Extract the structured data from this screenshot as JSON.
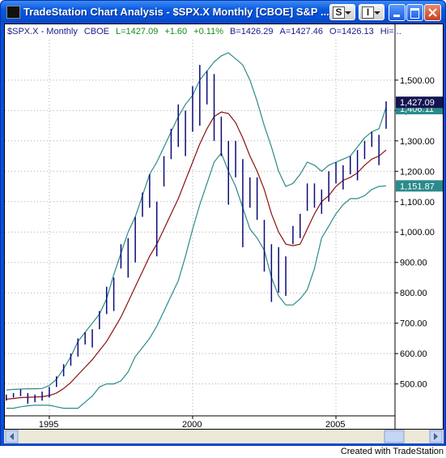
{
  "window": {
    "title": "TradeStation Chart Analysis - $SPX.X  Monthly  [CBOE] S&P ...",
    "menu_buttons": [
      "S",
      "I"
    ],
    "footer": "Created with TradeStation"
  },
  "chart_data": {
    "type": "ohlc",
    "header": [
      {
        "text": "$SPX.X - Monthly",
        "color": "#1a1a8c"
      },
      {
        "text": "CBOE",
        "color": "#1a1a8c"
      },
      {
        "text": "L=1427.09",
        "color": "#1a8c1a"
      },
      {
        "text": "+1.60",
        "color": "#1a8c1a"
      },
      {
        "text": "+0.11%",
        "color": "#1a8c1a"
      },
      {
        "text": "B=1426.29",
        "color": "#1a1a8c"
      },
      {
        "text": "A=1427.46",
        "color": "#1a1a8c"
      },
      {
        "text": "O=1426.13",
        "color": "#1a1a8c"
      },
      {
        "text": "Hi=...",
        "color": "#1a1a8c"
      }
    ],
    "x": [
      1993.5,
      1993.75,
      1994,
      1994.25,
      1994.5,
      1994.75,
      1995,
      1995.25,
      1995.5,
      1995.75,
      1996,
      1996.25,
      1996.5,
      1996.75,
      1997,
      1997.25,
      1997.5,
      1997.75,
      1998,
      1998.25,
      1998.5,
      1998.75,
      1999,
      1999.25,
      1999.5,
      1999.75,
      2000,
      2000.25,
      2000.5,
      2000.75,
      2001,
      2001.25,
      2001.5,
      2001.75,
      2002,
      2002.25,
      2002.5,
      2002.75,
      2003,
      2003.25,
      2003.5,
      2003.75,
      2004,
      2004.25,
      2004.5,
      2004.75,
      2005,
      2005.25,
      2005.5,
      2005.75,
      2006,
      2006.25,
      2006.5,
      2006.75
    ],
    "high": [
      465,
      470,
      482,
      470,
      465,
      475,
      490,
      525,
      565,
      600,
      650,
      670,
      680,
      740,
      820,
      850,
      960,
      980,
      1050,
      1130,
      1190,
      1100,
      1250,
      1340,
      1420,
      1400,
      1480,
      1550,
      1530,
      1520,
      1380,
      1300,
      1300,
      1240,
      1180,
      1180,
      1040,
      960,
      950,
      920,
      1020,
      1060,
      1160,
      1160,
      1140,
      1200,
      1230,
      1220,
      1250,
      1270,
      1300,
      1330,
      1320,
      1430
    ],
    "low": [
      445,
      455,
      460,
      435,
      440,
      445,
      455,
      490,
      525,
      560,
      590,
      630,
      620,
      680,
      730,
      740,
      880,
      850,
      900,
      1050,
      1080,
      920,
      1150,
      1240,
      1280,
      1250,
      1330,
      1350,
      1420,
      1300,
      1250,
      1090,
      1180,
      950,
      1080,
      1040,
      870,
      770,
      800,
      790,
      960,
      980,
      1070,
      1080,
      1060,
      1100,
      1160,
      1140,
      1190,
      1170,
      1240,
      1280,
      1220,
      1340
    ],
    "bar_color": "#0a0a78",
    "lines": [
      {
        "color": "#2b8a8a",
        "values": [
          480,
          482,
          483,
          484,
          484,
          485,
          495,
          515,
          550,
          590,
          640,
          670,
          700,
          730,
          780,
          860,
          930,
          1000,
          1050,
          1120,
          1190,
          1230,
          1280,
          1330,
          1380,
          1420,
          1450,
          1500,
          1530,
          1560,
          1580,
          1590,
          1570,
          1550,
          1500,
          1430,
          1350,
          1280,
          1200,
          1150,
          1160,
          1190,
          1230,
          1220,
          1200,
          1220,
          1230,
          1240,
          1250,
          1280,
          1310,
          1330,
          1340,
          1410
        ]
      },
      {
        "color": "#8b1010",
        "values": [
          450,
          452,
          455,
          456,
          457,
          458,
          462,
          470,
          485,
          505,
          530,
          555,
          580,
          610,
          640,
          680,
          720,
          770,
          820,
          870,
          920,
          960,
          1010,
          1060,
          1110,
          1170,
          1230,
          1290,
          1340,
          1380,
          1395,
          1390,
          1360,
          1310,
          1250,
          1200,
          1140,
          1060,
          1000,
          960,
          955,
          960,
          1010,
          1060,
          1100,
          1120,
          1150,
          1170,
          1180,
          1195,
          1220,
          1240,
          1250,
          1270
        ]
      },
      {
        "color": "#2b8a8a",
        "values": [
          420,
          420,
          425,
          428,
          430,
          430,
          430,
          425,
          420,
          420,
          420,
          440,
          460,
          490,
          500,
          500,
          510,
          540,
          590,
          620,
          650,
          690,
          740,
          790,
          840,
          920,
          1010,
          1090,
          1160,
          1230,
          1260,
          1200,
          1150,
          1080,
          1010,
          980,
          940,
          850,
          790,
          760,
          760,
          780,
          810,
          880,
          980,
          1020,
          1060,
          1090,
          1110,
          1110,
          1120,
          1140,
          1150,
          1152
        ]
      }
    ],
    "last_labels": [
      {
        "value": 1406.11,
        "label": "1,406.11",
        "color": "#2b8a8a"
      },
      {
        "value": 1151.87,
        "label": "1,151.87",
        "color": "#2b8a8a"
      },
      {
        "value": 1427.09,
        "label": "1,427.09",
        "color": "#141450"
      }
    ],
    "xlim": [
      1993.45,
      2007.06
    ],
    "ylim": [
      395,
      1633
    ],
    "xticks": [
      1995,
      2000,
      2005
    ],
    "yticks": [
      {
        "value": 500,
        "label": "500.00"
      },
      {
        "value": 600,
        "label": "600.00"
      },
      {
        "value": 700,
        "label": "700.00"
      },
      {
        "value": 800,
        "label": "800.00"
      },
      {
        "value": 900,
        "label": "900.00"
      },
      {
        "value": 1000,
        "label": "1,000.00"
      },
      {
        "value": 1100,
        "label": "1,100.00"
      },
      {
        "value": 1200,
        "label": "1,200.00"
      },
      {
        "value": 1300,
        "label": "1,300.00"
      },
      {
        "value": 1400,
        "label": "1,400.00"
      },
      {
        "value": 1500,
        "label": "1,500.00"
      }
    ],
    "grid": true
  }
}
